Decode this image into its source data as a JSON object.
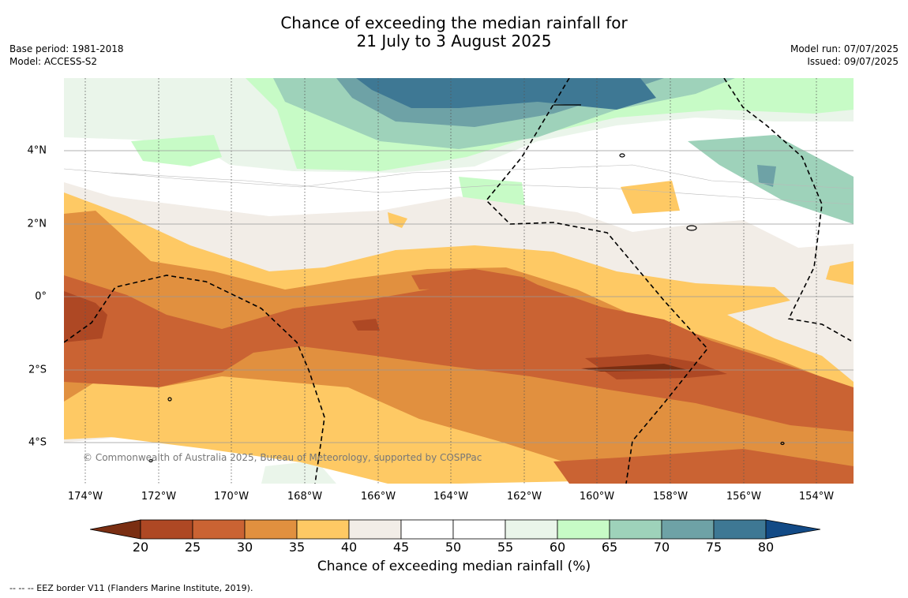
{
  "title": {
    "line1": "Chance of exceeding the median rainfall for",
    "line2": "21 July to 3 August 2025"
  },
  "meta": {
    "base_period": "Base period: 1981-2018",
    "model": "Model: ACCESS-S2",
    "model_run": "Model run: 07/07/2025",
    "issued": "Issued: 09/07/2025"
  },
  "map": {
    "copyright": "© Commonwealth of Australia 2025, Bureau of Meteorology, supported by COSPPac",
    "lat_labels": [
      "4°N",
      "2°N",
      "0°",
      "2°S",
      "4°S"
    ],
    "lon_labels": [
      "174°W",
      "172°W",
      "170°W",
      "168°W",
      "166°W",
      "164°W",
      "162°W",
      "160°W",
      "158°W",
      "156°W",
      "154°W"
    ],
    "eez_border": "dashed"
  },
  "colorbar": {
    "title": "Chance of exceeding median rainfall (%)",
    "ticks": [
      "20",
      "25",
      "30",
      "35",
      "40",
      "45",
      "50",
      "55",
      "60",
      "65",
      "70",
      "75",
      "80"
    ],
    "colors": [
      "#7a2e12",
      "#ae4824",
      "#ca6333",
      "#e1903f",
      "#fec964",
      "#f2ede7",
      "#ffffff",
      "#ffffff",
      "#eaf5ea",
      "#c7fbc6",
      "#9ed2ba",
      "#6ea2a6",
      "#3e7894",
      "#124a86"
    ]
  },
  "footnote": "--  --  -- EEZ border V11 (Flanders Marine Institute, 2019)."
}
